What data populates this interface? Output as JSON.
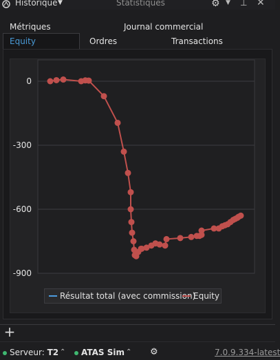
{
  "titlebar": {
    "menu_label": "Historique",
    "window_title": "Statistiques",
    "icons": [
      "atas-logo-icon",
      "caret-down-icon",
      "gear-icon",
      "pin-icon",
      "close-icon"
    ]
  },
  "tabs_top": [
    {
      "label": "Métriques"
    },
    {
      "label": "Journal commercial"
    }
  ],
  "tabs_sub": [
    {
      "label": "Equity",
      "active": true
    },
    {
      "label": "Ordres"
    },
    {
      "label": "Transactions"
    }
  ],
  "chart_data": {
    "type": "line",
    "title": "",
    "xlabel": "",
    "ylabel": "",
    "ylim": [
      -900,
      100
    ],
    "yticks": [
      "0",
      "-300",
      "-600",
      "-900"
    ],
    "grid": true,
    "legend_position": "bottom-center",
    "series": [
      {
        "name": "Résultat total (avec commission)",
        "color": "#4d9de0",
        "values": []
      },
      {
        "name": "Equity",
        "color": "#c0504d",
        "values": [
          0,
          5,
          8,
          0,
          4,
          3,
          -70,
          -195,
          -330,
          -430,
          -520,
          -600,
          -660,
          -710,
          -750,
          -790,
          -815,
          -820,
          -800,
          -785,
          -785,
          -780,
          -770,
          -760,
          -765,
          -770,
          -740,
          -735,
          -730,
          -725,
          -725,
          -720,
          -700,
          -690,
          -690,
          -680,
          -675,
          -670,
          -660,
          -650,
          -645,
          -640,
          -635,
          -630
        ]
      }
    ]
  },
  "footer": {
    "add_label": "+",
    "server_label": "Serveur:",
    "server_value": "T2",
    "account_value": "ATAS Sim",
    "version": "7.0.9.334-latest"
  },
  "colors": {
    "background": "#1e1e20",
    "accent": "#4a9bd8",
    "equity_line": "#c0504d",
    "status_dot": "#3fb871"
  }
}
